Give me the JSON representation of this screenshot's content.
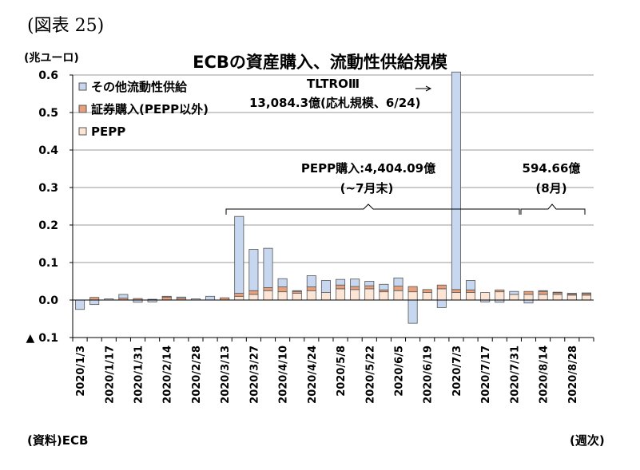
{
  "figure_number": "(図表 25)",
  "unit_label": "(兆ユーロ)",
  "source": "(資料)ECB",
  "x_unit": "(週次)",
  "colors": {
    "other": "#c6d7ef",
    "securities": "#e8a07c",
    "pepp": "#fde5d6",
    "edge": "#555555"
  },
  "annotations": {
    "tltro_line1": "TLTROⅢ",
    "tltro_line2": "13,084.3億(応札規模、6/24)",
    "pepp_line1": "PEPP購入:4,404.09億",
    "pepp_line2": "(~7月末)",
    "aug_line1": "594.66億",
    "aug_line2": "(8月)"
  },
  "chart_data": {
    "type": "bar",
    "stacked": true,
    "title": "ECBの資産購入、流動性供給規模",
    "ylim": [
      -0.1,
      0.6
    ],
    "yticks": [
      -0.1,
      0.0,
      0.1,
      0.2,
      0.3,
      0.4,
      0.5,
      0.6
    ],
    "ytick_labels": [
      "▲ 0.1",
      "0.0",
      "0.1",
      "0.2",
      "0.3",
      "0.4",
      "0.5",
      "0.6"
    ],
    "grid": true,
    "legend_position": "top-left",
    "x": [
      "2020/1/3",
      "2020/1/10",
      "2020/1/17",
      "2020/1/24",
      "2020/1/31",
      "2020/2/7",
      "2020/2/14",
      "2020/2/21",
      "2020/2/28",
      "2020/3/6",
      "2020/3/13",
      "2020/3/20",
      "2020/3/27",
      "2020/4/3",
      "2020/4/10",
      "2020/4/17",
      "2020/4/24",
      "2020/5/1",
      "2020/5/8",
      "2020/5/15",
      "2020/5/22",
      "2020/5/29",
      "2020/6/5",
      "2020/6/12",
      "2020/6/19",
      "2020/6/26",
      "2020/7/3",
      "2020/7/10",
      "2020/7/17",
      "2020/7/24",
      "2020/7/31",
      "2020/8/7",
      "2020/8/14",
      "2020/8/21",
      "2020/8/28",
      "2020/9/4"
    ],
    "x_tick_labels": [
      "2020/1/3",
      "",
      "2020/1/17",
      "",
      "2020/1/31",
      "",
      "2020/2/14",
      "",
      "2020/2/28",
      "",
      "2020/3/13",
      "",
      "2020/3/27",
      "",
      "2020/4/10",
      "",
      "2020/4/24",
      "",
      "2020/5/8",
      "",
      "2020/5/22",
      "",
      "2020/6/5",
      "",
      "2020/6/19",
      "",
      "2020/7/3",
      "",
      "2020/7/17",
      "",
      "2020/7/31",
      "",
      "2020/8/14",
      "",
      "2020/8/28",
      ""
    ],
    "series": [
      {
        "name": "PEPP",
        "key": "pepp",
        "values": [
          0,
          0,
          0,
          0,
          0,
          0,
          0,
          0,
          0,
          0,
          0,
          0.01,
          0.015,
          0.025,
          0.022,
          0.018,
          0.025,
          0.02,
          0.03,
          0.028,
          0.03,
          0.022,
          0.025,
          0.022,
          0.02,
          0.03,
          0.02,
          0.02,
          0.02,
          0.022,
          0.015,
          0.015,
          0.015,
          0.015,
          0.013,
          0.013
        ]
      },
      {
        "name": "証券購入(PEPP以外)",
        "key": "securities",
        "values": [
          0,
          0.007,
          0,
          0.005,
          0.004,
          0.002,
          0.008,
          0.005,
          0,
          0,
          0.006,
          0.008,
          0.01,
          0.008,
          0.013,
          0.005,
          0.01,
          0,
          0.01,
          0.008,
          0.008,
          0.005,
          0.012,
          0.014,
          0.008,
          0.01,
          0.008,
          0.007,
          0,
          0.005,
          0,
          0.008,
          0.008,
          0.005,
          0.003,
          0.004
        ]
      },
      {
        "name": "その他流動性供給",
        "key": "other",
        "values": [
          -0.025,
          -0.012,
          0.003,
          0.01,
          -0.006,
          -0.005,
          0.002,
          0.003,
          0.003,
          0.01,
          0,
          0.205,
          0.11,
          0.105,
          0.022,
          0.002,
          0.03,
          0.032,
          0.015,
          0.02,
          0.012,
          0.015,
          0.022,
          -0.062,
          0,
          -0.02,
          0.58,
          0.025,
          -0.005,
          -0.006,
          0.008,
          -0.008,
          0.002,
          0.001,
          0.002,
          0.002
        ]
      }
    ]
  }
}
